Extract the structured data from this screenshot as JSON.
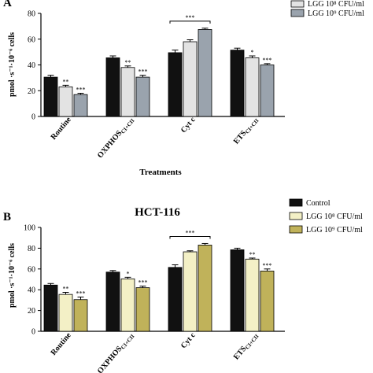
{
  "chart_data": [
    {
      "type": "bar",
      "panel_label": "A",
      "title": "",
      "xlabel": "Treatments",
      "ylabel": "pmol ·s⁻¹·10⁻⁶ cells",
      "ylim": [
        0,
        80
      ],
      "yticks": [
        0,
        20,
        40,
        60,
        80
      ],
      "categories": [
        {
          "main": "Routine",
          "sub": ""
        },
        {
          "main": "OXPHOS",
          "sub": "CI+CII"
        },
        {
          "main": "Cyt c",
          "sub": ""
        },
        {
          "main": "ETS",
          "sub": "CI+CII"
        }
      ],
      "series": [
        {
          "name": "",
          "color": "#111111",
          "values": [
            30.5,
            45.5,
            49.5,
            51.5
          ],
          "errors": [
            1.5,
            1.5,
            2,
            1.5
          ],
          "marks": [
            "",
            "",
            "",
            ""
          ]
        },
        {
          "name": "LGG 10⁸ CFU/ml",
          "color": "#e3e3e3",
          "values": [
            23,
            38,
            58,
            45.5
          ],
          "errors": [
            1.2,
            1.2,
            1.5,
            1.5
          ],
          "marks": [
            "**",
            "**",
            "",
            "*"
          ]
        },
        {
          "name": "LGG 10⁹ CFU/ml",
          "color": "#9aa3ad",
          "values": [
            17,
            30.5,
            67.5,
            40
          ],
          "errors": [
            1,
            1.5,
            1,
            1
          ],
          "marks": [
            "***",
            "***",
            "",
            "***"
          ]
        }
      ],
      "bracket": {
        "category": 2,
        "mark": "***"
      },
      "legend": "top-right"
    },
    {
      "type": "bar",
      "panel_label": "B",
      "title": "HCT-116",
      "xlabel": "",
      "ylabel": "pmol ·s⁻¹·10⁻⁶ cells",
      "ylim": [
        0,
        100
      ],
      "yticks": [
        0,
        20,
        40,
        60,
        80,
        100
      ],
      "categories": [
        {
          "main": "Routine",
          "sub": ""
        },
        {
          "main": "OXPHOS",
          "sub": "CI+CII"
        },
        {
          "main": "Cyt c",
          "sub": ""
        },
        {
          "main": "ETS",
          "sub": "CI+CII"
        }
      ],
      "series": [
        {
          "name": "Control",
          "color": "#111111",
          "values": [
            44.5,
            57,
            61.5,
            78.5
          ],
          "errors": [
            1.5,
            1.5,
            2.5,
            1.5
          ],
          "marks": [
            "",
            "",
            "",
            ""
          ]
        },
        {
          "name": "LGG 10⁸ CFU/ml",
          "color": "#f3f0c6",
          "values": [
            35.5,
            50.5,
            76.5,
            69.5
          ],
          "errors": [
            2,
            1.5,
            1,
            1
          ],
          "marks": [
            "**",
            "*",
            "",
            "**"
          ]
        },
        {
          "name": "LGG 10⁹ CFU/ml",
          "color": "#c0b25a",
          "values": [
            30.5,
            42,
            83,
            58
          ],
          "errors": [
            2.5,
            1.5,
            1.5,
            2
          ],
          "marks": [
            "***",
            "***",
            "",
            "***"
          ]
        }
      ],
      "bracket": {
        "category": 2,
        "mark": "***"
      },
      "legend": "top-right"
    }
  ]
}
